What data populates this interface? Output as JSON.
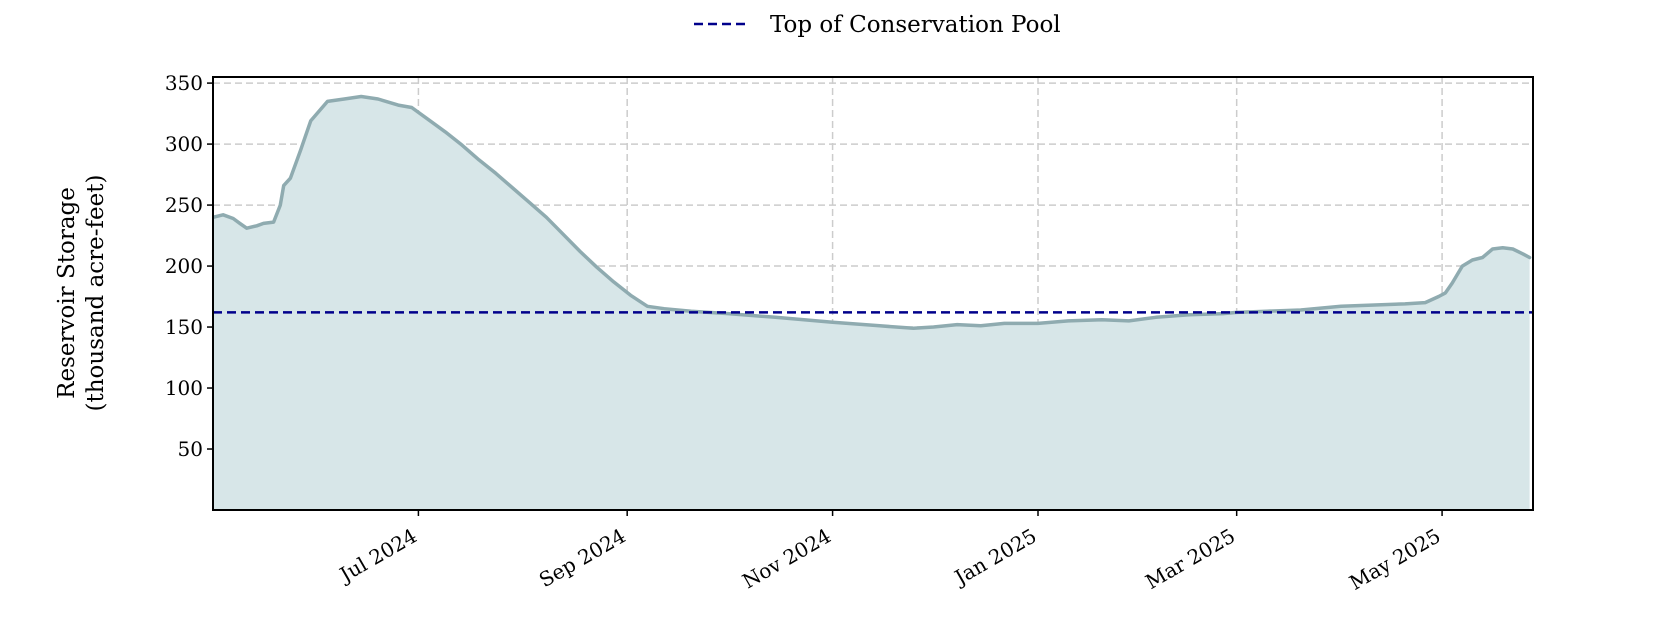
{
  "chart_data": {
    "type": "area",
    "title": "",
    "xlabel": "",
    "ylabel_lines": [
      "Reservoir Storage",
      "(thousand acre-feet)"
    ],
    "x_range": [
      "2024-05-01",
      "2025-05-28"
    ],
    "ylim": [
      0,
      355
    ],
    "y_ticks": [
      50,
      100,
      150,
      200,
      250,
      300,
      350
    ],
    "x_ticks": [
      {
        "date": "2024-07-01",
        "label": "Jul 2024"
      },
      {
        "date": "2024-09-01",
        "label": "Sep 2024"
      },
      {
        "date": "2024-11-01",
        "label": "Nov 2024"
      },
      {
        "date": "2025-01-01",
        "label": "Jan 2025"
      },
      {
        "date": "2025-03-01",
        "label": "Mar 2025"
      },
      {
        "date": "2025-05-01",
        "label": "May 2025"
      }
    ],
    "grid": true,
    "legend_position": "top-center",
    "storage_series": {
      "color": "#8fabb0",
      "fill_color": "#d7e6e8",
      "points": [
        [
          "2024-05-01",
          240
        ],
        [
          "2024-05-04",
          242
        ],
        [
          "2024-05-07",
          239
        ],
        [
          "2024-05-09",
          235
        ],
        [
          "2024-05-11",
          231
        ],
        [
          "2024-05-14",
          233
        ],
        [
          "2024-05-16",
          235
        ],
        [
          "2024-05-19",
          236
        ],
        [
          "2024-05-21",
          250
        ],
        [
          "2024-05-22",
          266
        ],
        [
          "2024-05-24",
          272
        ],
        [
          "2024-05-27",
          295
        ],
        [
          "2024-05-30",
          319
        ],
        [
          "2024-06-04",
          335
        ],
        [
          "2024-06-09",
          337
        ],
        [
          "2024-06-14",
          339
        ],
        [
          "2024-06-19",
          337
        ],
        [
          "2024-06-25",
          332
        ],
        [
          "2024-06-29",
          330
        ],
        [
          "2024-07-04",
          320
        ],
        [
          "2024-07-09",
          310
        ],
        [
          "2024-07-14",
          299
        ],
        [
          "2024-07-19",
          287
        ],
        [
          "2024-07-24",
          276
        ],
        [
          "2024-07-29",
          264
        ],
        [
          "2024-08-03",
          252
        ],
        [
          "2024-08-08",
          240
        ],
        [
          "2024-08-13",
          226
        ],
        [
          "2024-08-18",
          212
        ],
        [
          "2024-08-23",
          199
        ],
        [
          "2024-08-28",
          187
        ],
        [
          "2024-09-02",
          176
        ],
        [
          "2024-09-07",
          167
        ],
        [
          "2024-09-12",
          165
        ],
        [
          "2024-09-20",
          163
        ],
        [
          "2024-10-01",
          161
        ],
        [
          "2024-10-15",
          158
        ],
        [
          "2024-11-01",
          154
        ],
        [
          "2024-11-15",
          151
        ],
        [
          "2024-11-25",
          149
        ],
        [
          "2024-12-01",
          150
        ],
        [
          "2024-12-08",
          152
        ],
        [
          "2024-12-15",
          151
        ],
        [
          "2024-12-22",
          153
        ],
        [
          "2025-01-01",
          153
        ],
        [
          "2025-01-10",
          155
        ],
        [
          "2025-01-20",
          156
        ],
        [
          "2025-01-28",
          155
        ],
        [
          "2025-02-05",
          158
        ],
        [
          "2025-02-15",
          160
        ],
        [
          "2025-02-25",
          161
        ],
        [
          "2025-03-01",
          162
        ],
        [
          "2025-03-10",
          163
        ],
        [
          "2025-03-20",
          164
        ],
        [
          "2025-04-01",
          167
        ],
        [
          "2025-04-10",
          168
        ],
        [
          "2025-04-20",
          169
        ],
        [
          "2025-04-26",
          170
        ],
        [
          "2025-04-30",
          175
        ],
        [
          "2025-05-02",
          178
        ],
        [
          "2025-05-04",
          186
        ],
        [
          "2025-05-07",
          200
        ],
        [
          "2025-05-10",
          205
        ],
        [
          "2025-05-13",
          207
        ],
        [
          "2025-05-16",
          214
        ],
        [
          "2025-05-19",
          215
        ],
        [
          "2025-05-22",
          214
        ],
        [
          "2025-05-25",
          210
        ],
        [
          "2025-05-27",
          207
        ]
      ]
    },
    "reference_line": {
      "name": "Top of Conservation Pool",
      "value": 162,
      "color": "#00008b",
      "style": "dashed"
    }
  }
}
